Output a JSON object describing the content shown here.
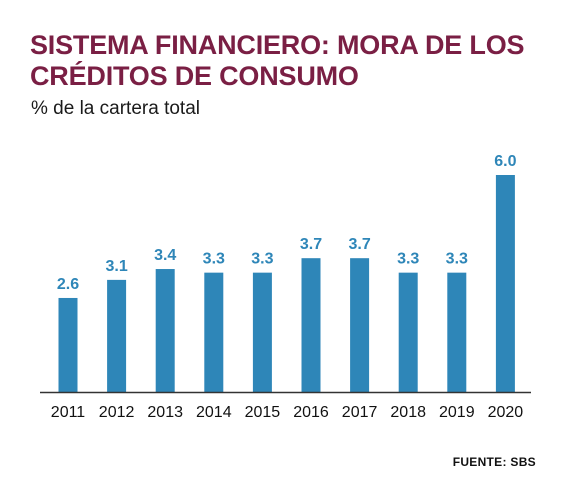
{
  "header": {
    "title": "SISTEMA FINANCIERO: MORA DE LOS CRÉDITOS DE CONSUMO",
    "subtitle": "% de la cartera total"
  },
  "footer": {
    "source": "FUENTE: SBS"
  },
  "colors": {
    "title": "#7a1f44",
    "bar": "#2e86b8",
    "label": "#2e86b8",
    "axis": "#333333"
  },
  "chart_data": {
    "type": "bar",
    "title": "SISTEMA FINANCIERO: MORA DE LOS CRÉDITOS DE CONSUMO",
    "subtitle": "% de la cartera total",
    "categories": [
      "2011",
      "2012",
      "2013",
      "2014",
      "2015",
      "2016",
      "2017",
      "2018",
      "2019",
      "2020"
    ],
    "values": [
      2.6,
      3.1,
      3.4,
      3.3,
      3.3,
      3.7,
      3.7,
      3.3,
      3.3,
      6.0
    ],
    "value_labels": [
      "2.6",
      "3.1",
      "3.4",
      "3.3",
      "3.3",
      "3.7",
      "3.7",
      "3.3",
      "3.3",
      "6.0"
    ],
    "xlabel": "",
    "ylabel": "",
    "ylim": [
      0,
      6.0
    ],
    "grid": false,
    "legend": "none"
  }
}
